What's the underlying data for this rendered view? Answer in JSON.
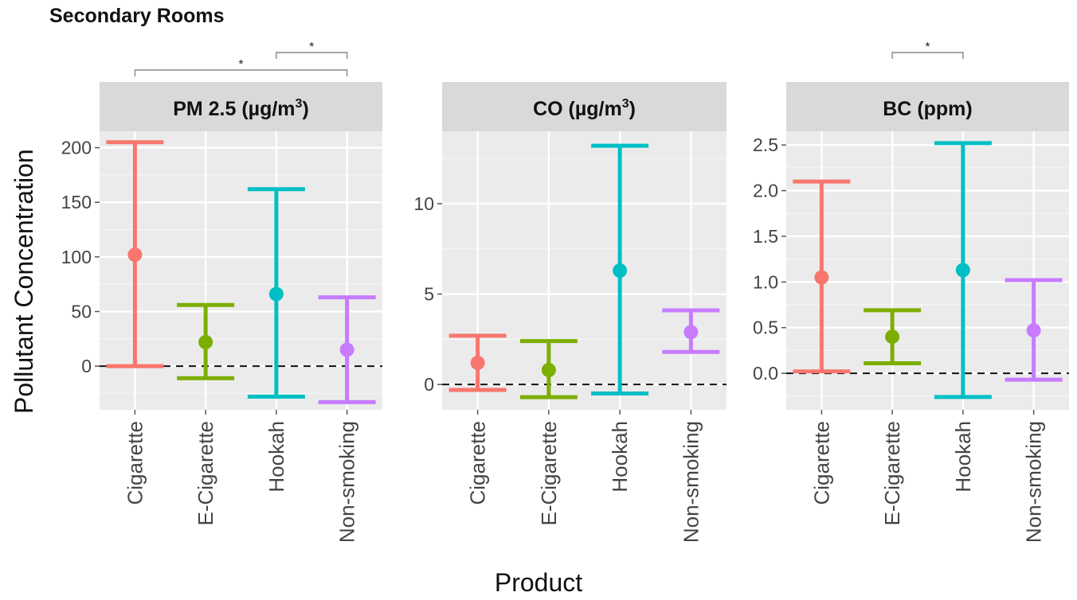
{
  "title": "Secondary Rooms",
  "chart_data": {
    "type": "errorbar",
    "ylabel": "Pollutant Concentration",
    "xlabel": "Product",
    "categories": [
      "Cigarette",
      "E-Cigarette",
      "Hookah",
      "Non-smoking"
    ],
    "colors": [
      "#f8766d",
      "#7cae00",
      "#00bfc4",
      "#c77cff"
    ],
    "reference_line": 0,
    "panels": [
      {
        "name": "PM 2.5",
        "unit_base": "(µg/m",
        "unit_sup": "3",
        "unit_tail": ")",
        "ylim": [
          -40,
          215
        ],
        "ticks": [
          0,
          50,
          100,
          150,
          200
        ],
        "tick_labels": [
          "0",
          "50",
          "100",
          "150",
          "200"
        ],
        "points": [
          {
            "mean": 102,
            "low": 0,
            "high": 205
          },
          {
            "mean": 22,
            "low": -11,
            "high": 56
          },
          {
            "mean": 66,
            "low": -28,
            "high": 162
          },
          {
            "mean": 15,
            "low": -33,
            "high": 63
          }
        ],
        "significance": [
          {
            "from": 2,
            "to": 3,
            "label": "*"
          },
          {
            "from": 0,
            "to": 3,
            "label": "*"
          }
        ]
      },
      {
        "name": "CO",
        "unit_base": "(µg/m",
        "unit_sup": "3",
        "unit_tail": ")",
        "ylim": [
          -1.4,
          14.0
        ],
        "ticks": [
          0,
          5,
          10
        ],
        "tick_labels": [
          "0",
          "5",
          "10"
        ],
        "points": [
          {
            "mean": 1.2,
            "low": -0.3,
            "high": 2.7
          },
          {
            "mean": 0.8,
            "low": -0.7,
            "high": 2.4
          },
          {
            "mean": 6.3,
            "low": -0.5,
            "high": 13.2
          },
          {
            "mean": 2.9,
            "low": 1.8,
            "high": 4.1
          }
        ],
        "significance": []
      },
      {
        "name": "BC",
        "unit_base": "(ppm)",
        "unit_sup": "",
        "unit_tail": "",
        "ylim": [
          -0.4,
          2.65
        ],
        "ticks": [
          0.0,
          0.5,
          1.0,
          1.5,
          2.0,
          2.5
        ],
        "tick_labels": [
          "0.0",
          "0.5",
          "1.0",
          "1.5",
          "2.0",
          "2.5"
        ],
        "points": [
          {
            "mean": 1.05,
            "low": 0.02,
            "high": 2.1
          },
          {
            "mean": 0.4,
            "low": 0.11,
            "high": 0.69
          },
          {
            "mean": 1.13,
            "low": -0.26,
            "high": 2.52
          },
          {
            "mean": 0.47,
            "low": -0.07,
            "high": 1.02
          }
        ],
        "significance": [
          {
            "from": 1,
            "to": 2,
            "label": "*"
          }
        ]
      }
    ]
  }
}
